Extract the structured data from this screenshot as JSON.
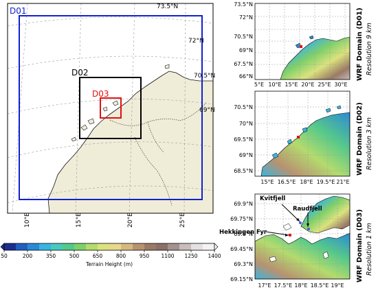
{
  "main_map": {
    "domains": [
      {
        "label": "D01",
        "color": "#1020d0"
      },
      {
        "label": "D02",
        "color": "#000000"
      },
      {
        "label": "D03",
        "color": "#e01010"
      }
    ],
    "lat_labels": [
      "73.5°N",
      "72°N",
      "70.5°N",
      "69°N"
    ],
    "lon_labels": [
      "10°E",
      "15°E",
      "20°E",
      "25°E"
    ]
  },
  "colorbar": {
    "ticks": [
      "50",
      "200",
      "350",
      "500",
      "650",
      "800",
      "950",
      "1100",
      "1250",
      "1400"
    ],
    "label": "Terrain Height (m)",
    "colors": [
      "#1b2f8f",
      "#1f5fbf",
      "#2a8ad6",
      "#39b4e0",
      "#48c9c0",
      "#55c98a",
      "#7fd06a",
      "#b3db6e",
      "#dbe27e",
      "#e6d98a",
      "#d4b880",
      "#b89270",
      "#9a7a66",
      "#8a7068",
      "#a49290",
      "#c8bcbc",
      "#e6e0e0",
      "#f4f2f2"
    ]
  },
  "panels": [
    {
      "title": "WRF Domain (D01)",
      "resolution": "Resolution 9 km",
      "y_ticks": [
        "73.5°N",
        "72°N",
        "70.5°N",
        "69°N",
        "67.5°N",
        "66°N"
      ],
      "x_ticks": [
        "5°E",
        "10°E",
        "15°E",
        "20°E",
        "25°E",
        "30°E"
      ]
    },
    {
      "title": "WRF Domain (D02)",
      "resolution": "Resolution 3 km",
      "y_ticks": [
        "70.5°N",
        "70°N",
        "69.5°N",
        "69°N",
        "68.5°N"
      ],
      "x_ticks": [
        "15°E",
        "16.5°E",
        "18°E",
        "19.5°E",
        "21°E"
      ]
    },
    {
      "title": "WRF Domain (D03)",
      "resolution": "Resolution 1 km",
      "y_ticks": [
        "69.9°N",
        "69.75°N",
        "69.6°N",
        "69.45°N",
        "69.3°N",
        "69.15°N"
      ],
      "x_ticks": [
        "17°E",
        "17.5°E",
        "18°E",
        "18.5°E",
        "19°E"
      ],
      "places": [
        "Kvitfjell",
        "Raudfjell",
        "Hekkingen Fyr"
      ]
    }
  ]
}
